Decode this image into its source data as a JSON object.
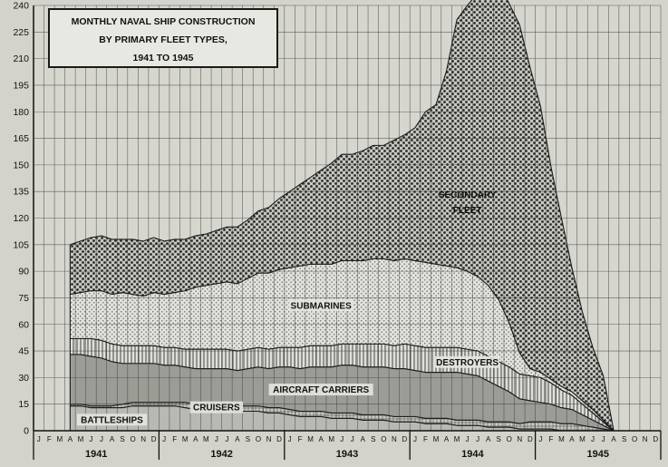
{
  "chart_data": {
    "type": "area",
    "stacked": true,
    "title_lines": [
      "MONTHLY NAVAL SHIP CONSTRUCTION",
      "BY PRIMARY FLEET TYPES,",
      "1941 TO 1945"
    ],
    "ylim": [
      0,
      240
    ],
    "yticks": [
      0,
      15,
      30,
      45,
      60,
      75,
      90,
      105,
      120,
      135,
      150,
      165,
      180,
      195,
      210,
      225,
      240
    ],
    "month_letters": [
      "J",
      "F",
      "M",
      "A",
      "M",
      "J",
      "J",
      "A",
      "S",
      "O",
      "N",
      "D"
    ],
    "years": [
      "1941",
      "1942",
      "1943",
      "1944",
      "1945"
    ],
    "x_start_month_index": 3,
    "series": [
      {
        "name": "BATTLESHIPS",
        "values": [
          14,
          14,
          13,
          13,
          13,
          13,
          14,
          14,
          14,
          14,
          14,
          13,
          12,
          12,
          12,
          12,
          11,
          11,
          11,
          10,
          10,
          9,
          8,
          8,
          8,
          7,
          7,
          7,
          6,
          6,
          6,
          5,
          5,
          5,
          4,
          4,
          4,
          3,
          3,
          3,
          2,
          2,
          2,
          1,
          1,
          1,
          1,
          0,
          0,
          0,
          0,
          0,
          0
        ]
      },
      {
        "name": "CRUISERS",
        "values": [
          1,
          1,
          1,
          1,
          1,
          2,
          2,
          2,
          2,
          2,
          2,
          3,
          3,
          3,
          3,
          3,
          3,
          3,
          3,
          3,
          3,
          3,
          3,
          3,
          3,
          3,
          3,
          3,
          3,
          3,
          3,
          3,
          3,
          3,
          3,
          3,
          3,
          3,
          3,
          3,
          3,
          3,
          3,
          3,
          4,
          4,
          4,
          4,
          4,
          3,
          2,
          1,
          0
        ]
      },
      {
        "name": "AIRCRAFT CARRIERS",
        "values": [
          28,
          28,
          28,
          27,
          25,
          23,
          22,
          22,
          22,
          21,
          21,
          20,
          20,
          20,
          20,
          20,
          20,
          21,
          22,
          22,
          23,
          24,
          24,
          25,
          25,
          26,
          27,
          27,
          27,
          27,
          27,
          27,
          27,
          26,
          26,
          26,
          26,
          27,
          26,
          25,
          23,
          20,
          17,
          14,
          12,
          11,
          10,
          9,
          8,
          6,
          4,
          2,
          0
        ]
      },
      {
        "name": "DESTROYERS",
        "values": [
          9,
          9,
          10,
          10,
          10,
          10,
          10,
          10,
          10,
          10,
          10,
          10,
          11,
          11,
          11,
          11,
          11,
          11,
          11,
          11,
          11,
          11,
          12,
          12,
          12,
          12,
          12,
          12,
          13,
          13,
          13,
          13,
          14,
          14,
          14,
          14,
          14,
          14,
          14,
          14,
          14,
          14,
          14,
          14,
          14,
          14,
          12,
          10,
          8,
          6,
          4,
          2,
          0
        ]
      },
      {
        "name": "SUBMARINES",
        "values": [
          25,
          26,
          27,
          28,
          28,
          30,
          29,
          28,
          30,
          30,
          31,
          33,
          35,
          36,
          37,
          38,
          38,
          40,
          42,
          43,
          44,
          45,
          46,
          46,
          46,
          46,
          47,
          47,
          47,
          48,
          48,
          48,
          48,
          48,
          48,
          47,
          46,
          45,
          44,
          42,
          40,
          35,
          25,
          12,
          4,
          3,
          2,
          2,
          2,
          2,
          2,
          1,
          0
        ]
      },
      {
        "name": "SECONDARY FLEET",
        "values": [
          28,
          29,
          30,
          31,
          31,
          30,
          31,
          31,
          31,
          30,
          30,
          29,
          29,
          29,
          30,
          31,
          32,
          33,
          35,
          37,
          40,
          43,
          46,
          49,
          53,
          57,
          60,
          60,
          62,
          64,
          64,
          68,
          70,
          75,
          85,
          90,
          110,
          140,
          150,
          160,
          170,
          178,
          180,
          185,
          170,
          150,
          120,
          95,
          70,
          50,
          35,
          25,
          0
        ]
      }
    ],
    "fill_colors": [
      "#b9b9b3",
      "#cacac4",
      "#9c9c96",
      "#d4d4cd",
      "#dcdcd5",
      "#bdbdb7"
    ]
  }
}
